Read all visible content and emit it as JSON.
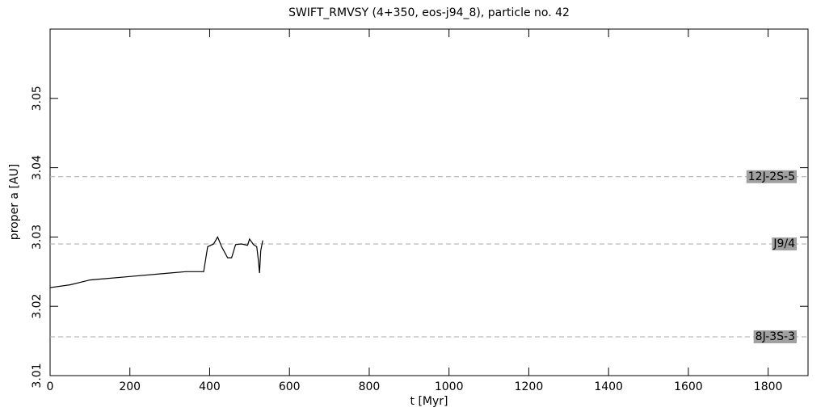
{
  "chart_data": {
    "type": "line",
    "title": "SWIFT_RMVSY (4+350, eos-j94_8), particle no. 42",
    "x_label": "t [Myr]",
    "y_label": "proper a [AU]",
    "xlim": [
      0,
      1900
    ],
    "ylim": [
      3.01,
      3.06
    ],
    "xticks": [
      0,
      200,
      400,
      600,
      800,
      1000,
      1200,
      1400,
      1600,
      1800
    ],
    "yticks": [
      3.01,
      3.02,
      3.03,
      3.04,
      3.05
    ],
    "x": [
      0,
      50,
      100,
      200,
      300,
      340,
      385,
      395,
      410,
      420,
      430,
      445,
      455,
      465,
      480,
      495,
      500,
      510,
      518,
      522,
      525,
      528,
      533
    ],
    "series": [
      {
        "color": "#000000",
        "values": [
          3.0227,
          3.0231,
          3.0238,
          3.0243,
          3.0248,
          3.025,
          3.025,
          3.0286,
          3.029,
          3.03,
          3.0286,
          3.027,
          3.027,
          3.0289,
          3.029,
          3.0288,
          3.0297,
          3.0289,
          3.0286,
          3.0267,
          3.0248,
          3.028,
          3.0295
        ]
      }
    ],
    "resonances": [
      {
        "label": "12J-2S-5",
        "value": 3.0387
      },
      {
        "label": "J9/4",
        "value": 3.029
      },
      {
        "label": "8J-3S-3",
        "value": 3.0156
      }
    ]
  }
}
